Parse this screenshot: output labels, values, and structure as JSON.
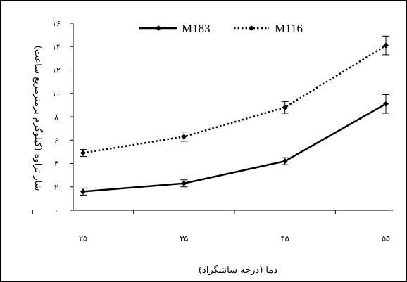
{
  "chart_data": {
    "type": "line",
    "xlabel": "دما (درجه سانتیگراد)",
    "ylabel": "شار تراوه (کیلوگرم برمترمربع ساعت)",
    "categories": [
      "۲۵",
      "۳۵",
      "۴۵",
      "۵۵"
    ],
    "x": [
      25,
      35,
      45,
      55
    ],
    "ylim": [
      0,
      16
    ],
    "yticks": [
      0,
      2,
      4,
      6,
      8,
      10,
      12,
      14,
      16
    ],
    "ytick_labels": [
      "۰",
      "۲",
      "۴",
      "۶",
      "۸",
      "۱۰",
      "۱۲",
      "۱۴",
      "۱۶"
    ],
    "grid": false,
    "legend_position": "top",
    "series": [
      {
        "name": "M183",
        "style": "solid",
        "color": "#000000",
        "values": [
          1.6,
          2.3,
          4.2,
          9.1
        ],
        "errors": [
          0.3,
          0.3,
          0.3,
          0.8
        ]
      },
      {
        "name": "M116",
        "style": "dotted",
        "color": "#000000",
        "values": [
          4.9,
          6.3,
          8.8,
          14.1
        ],
        "errors": [
          0.3,
          0.4,
          0.5,
          0.8
        ]
      }
    ]
  }
}
